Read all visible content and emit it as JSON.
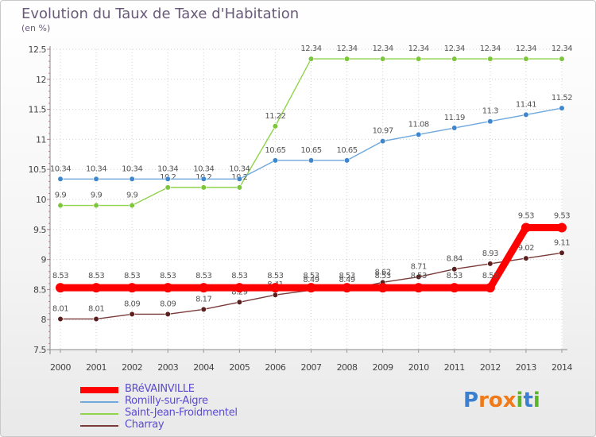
{
  "header": {
    "title": "Evolution du Taux de Taxe d'Habitation",
    "subtitle": "(en %)"
  },
  "logo": {
    "text": "Proxiti",
    "letters": [
      {
        "ch": "P",
        "color": "#3a7fd0"
      },
      {
        "ch": "r",
        "color": "#f07a1a"
      },
      {
        "ch": "o",
        "color": "#f07a1a"
      },
      {
        "ch": "x",
        "color": "#f07a1a"
      },
      {
        "ch": "i",
        "color": "#5ab52a"
      },
      {
        "ch": "t",
        "color": "#3a7fd0"
      },
      {
        "ch": "i",
        "color": "#5ab52a"
      }
    ]
  },
  "chart_data": {
    "type": "line",
    "title": "Evolution du Taux de Taxe d'Habitation",
    "subtitle": "(en %)",
    "x": [
      "2000",
      "2001",
      "2002",
      "2003",
      "2004",
      "2005",
      "2006",
      "2007",
      "2008",
      "2009",
      "2010",
      "2011",
      "2012",
      "2013",
      "2014"
    ],
    "ylim": [
      7.5,
      12.5
    ],
    "yticks": [
      "7.5",
      "8",
      "8.5",
      "9",
      "9.5",
      "10",
      "10.5",
      "11",
      "11.5",
      "12",
      "12.5"
    ],
    "grid": true,
    "legend_position": "bottom-left",
    "series": [
      {
        "name": "Saint-Jean-Froidmentel",
        "color": "#8fd44a",
        "marker": "#7cc63c",
        "values": [
          9.9,
          9.9,
          9.9,
          10.2,
          10.2,
          10.2,
          11.22,
          12.34,
          12.34,
          12.34,
          12.34,
          12.34,
          12.34,
          12.34,
          12.34
        ],
        "labels": [
          "9.9",
          "9.9",
          "9.9",
          "10.2",
          "10.2",
          "10.2",
          "11.22",
          "12.34",
          "12.34",
          "12.34",
          "12.34",
          "12.34",
          "12.34",
          "12.34",
          "12.34"
        ]
      },
      {
        "name": "Romilly-sur-Aigre",
        "color": "#6ea8dc",
        "marker": "#3f86cc",
        "values": [
          10.34,
          10.34,
          10.34,
          10.34,
          10.34,
          10.34,
          10.65,
          10.65,
          10.65,
          10.97,
          11.08,
          11.19,
          11.3,
          11.41,
          11.52
        ],
        "labels": [
          "10.34",
          "10.34",
          "10.34",
          "10.34",
          "10.34",
          "10.34",
          "10.65",
          "10.65",
          "10.65",
          "10.97",
          "11.08",
          "11.19",
          "11.3",
          "11.41",
          "11.52"
        ]
      },
      {
        "name": "Charray",
        "color": "#7a3a3a",
        "marker": "#5a1f1f",
        "values": [
          8.01,
          8.01,
          8.09,
          8.09,
          8.17,
          8.29,
          8.41,
          8.49,
          8.49,
          8.62,
          8.71,
          8.84,
          8.93,
          9.02,
          9.11
        ],
        "labels": [
          "8.01",
          "8.01",
          "8.09",
          "8.09",
          "8.17",
          "8.29",
          "8.41",
          "8.49",
          "8.49",
          "8.62",
          "8.71",
          "8.84",
          "8.93",
          "9.02",
          "9.11"
        ]
      },
      {
        "name": "BRéVAINVILLE",
        "color": "#ff0000",
        "marker": "#ff0000",
        "values": [
          8.53,
          8.53,
          8.53,
          8.53,
          8.53,
          8.53,
          8.53,
          8.53,
          8.53,
          8.53,
          8.53,
          8.53,
          8.53,
          9.53,
          9.53
        ],
        "labels": [
          "8.53",
          "8.53",
          "8.53",
          "8.53",
          "8.53",
          "8.53",
          "8.53",
          "8.53",
          "8.53",
          "8.53",
          "8.53",
          "8.53",
          "8.53",
          "9.53",
          "9.53"
        ]
      }
    ],
    "legend": [
      {
        "name": "BRéVAINVILLE",
        "color": "#ff0000"
      },
      {
        "name": "Romilly-sur-Aigre",
        "color": "#6ea8dc"
      },
      {
        "name": "Saint-Jean-Froidmentel",
        "color": "#8fd44a"
      },
      {
        "name": "Charray",
        "color": "#7a3a3a"
      }
    ]
  }
}
